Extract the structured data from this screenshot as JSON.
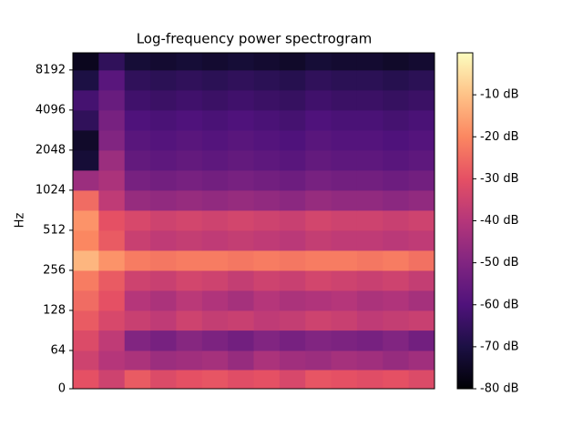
{
  "chart_data": {
    "type": "heatmap",
    "title": "Log-frequency power spectrogram",
    "y_label": "Hz",
    "yscale": "symlog",
    "linthresh": 64,
    "ylim": [
      0,
      11025
    ],
    "yticks": [
      0,
      64,
      128,
      256,
      512,
      1024,
      2048,
      4096,
      8192
    ],
    "freq_edges": [
      0,
      32,
      64,
      91,
      128,
      181,
      256,
      362,
      512,
      724,
      1024,
      1448,
      2048,
      2896,
      4096,
      5793,
      8192,
      11025
    ],
    "values": [
      [
        -30,
        -35,
        -28,
        -32,
        -30,
        -29,
        -31,
        -30,
        -33,
        -29,
        -30,
        -31,
        -30,
        -32
      ],
      [
        -35,
        -40,
        -42,
        -45,
        -44,
        -43,
        -46,
        -42,
        -44,
        -45,
        -43,
        -44,
        -46,
        -44
      ],
      [
        -32,
        -38,
        -50,
        -52,
        -49,
        -51,
        -53,
        -50,
        -52,
        -50,
        -51,
        -52,
        -50,
        -53
      ],
      [
        -28,
        -33,
        -36,
        -38,
        -35,
        -37,
        -36,
        -38,
        -37,
        -35,
        -36,
        -38,
        -37,
        -36
      ],
      [
        -25,
        -30,
        -40,
        -42,
        -39,
        -41,
        -43,
        -40,
        -42,
        -41,
        -40,
        -42,
        -41,
        -43
      ],
      [
        -22,
        -28,
        -35,
        -36,
        -34,
        -35,
        -37,
        -35,
        -36,
        -34,
        -35,
        -36,
        -35,
        -37
      ],
      [
        -12,
        -18,
        -22,
        -23,
        -22,
        -22,
        -23,
        -22,
        -23,
        -22,
        -22,
        -23,
        -22,
        -24
      ],
      [
        -20,
        -28,
        -36,
        -38,
        -37,
        -38,
        -37,
        -38,
        -39,
        -37,
        -38,
        -38,
        -39,
        -38
      ],
      [
        -18,
        -30,
        -33,
        -35,
        -34,
        -35,
        -34,
        -35,
        -36,
        -34,
        -35,
        -35,
        -36,
        -35
      ],
      [
        -25,
        -38,
        -46,
        -47,
        -46,
        -47,
        -46,
        -47,
        -48,
        -46,
        -47,
        -47,
        -48,
        -47
      ],
      [
        -45,
        -42,
        -52,
        -53,
        -52,
        -53,
        -52,
        -53,
        -54,
        -52,
        -53,
        -53,
        -54,
        -53
      ],
      [
        -72,
        -45,
        -56,
        -57,
        -56,
        -57,
        -56,
        -57,
        -58,
        -56,
        -57,
        -57,
        -58,
        -57
      ],
      [
        -74,
        -50,
        -58,
        -59,
        -58,
        -59,
        -58,
        -59,
        -60,
        -58,
        -59,
        -59,
        -60,
        -59
      ],
      [
        -66,
        -52,
        -60,
        -61,
        -60,
        -61,
        -60,
        -61,
        -62,
        -60,
        -61,
        -61,
        -62,
        -61
      ],
      [
        -62,
        -55,
        -63,
        -64,
        -63,
        -64,
        -63,
        -64,
        -65,
        -63,
        -64,
        -64,
        -65,
        -64
      ],
      [
        -70,
        -58,
        -66,
        -67,
        -66,
        -67,
        -66,
        -67,
        -68,
        -66,
        -67,
        -67,
        -68,
        -67
      ],
      [
        -76,
        -66,
        -72,
        -73,
        -72,
        -73,
        -72,
        -73,
        -74,
        -72,
        -73,
        -73,
        -74,
        -73
      ]
    ],
    "clim": [
      -80,
      0
    ],
    "cmap": [
      "#000004",
      "#1c1044",
      "#4f127b",
      "#812581",
      "#b5367a",
      "#e55064",
      "#fb8761",
      "#fec287",
      "#fcfdbf"
    ],
    "cticks": [
      {
        "value": -80,
        "label": "-80 dB"
      },
      {
        "value": -70,
        "label": "-70 dB"
      },
      {
        "value": -60,
        "label": "-60 dB"
      },
      {
        "value": -50,
        "label": "-50 dB"
      },
      {
        "value": -40,
        "label": "-40 dB"
      },
      {
        "value": -30,
        "label": "-30 dB"
      },
      {
        "value": -20,
        "label": "-20 dB"
      },
      {
        "value": -10,
        "label": "-10 dB"
      }
    ]
  }
}
